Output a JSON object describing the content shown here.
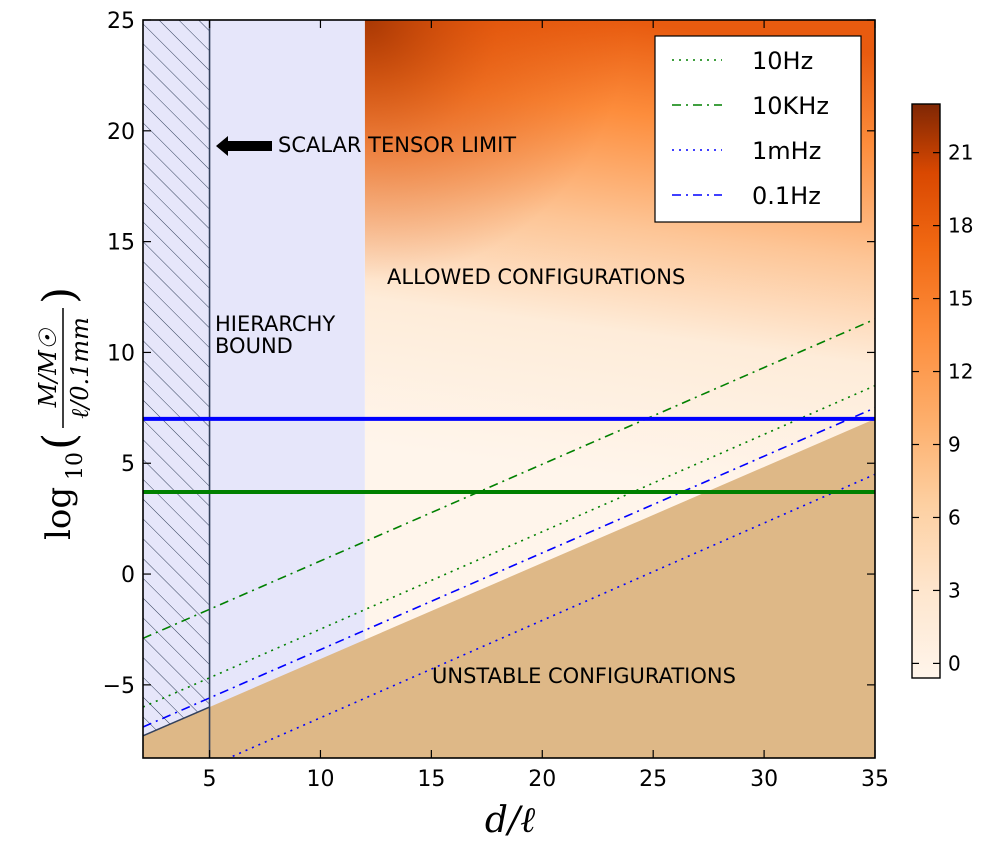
{
  "chart_data": {
    "type": "heatmap",
    "xlabel": "d/ℓ",
    "ylabel": {
      "prefix": "log",
      "subscript": "10",
      "numerator": "M/M☉",
      "denominator": "ℓ/0.1mm"
    },
    "xlim": [
      2,
      35
    ],
    "ylim": [
      -8.3,
      25
    ],
    "x_ticks": [
      5,
      10,
      15,
      20,
      25,
      30,
      35
    ],
    "y_ticks": [
      -5,
      0,
      5,
      10,
      15,
      20,
      25
    ],
    "y_tick_labels": [
      "−5",
      "0",
      "5",
      "10",
      "15",
      "20",
      "25"
    ],
    "colorbar": {
      "min": -0.6,
      "max": 23,
      "ticks": [
        0,
        3,
        6,
        9,
        12,
        15,
        18,
        21
      ],
      "colormap": "Oranges",
      "colors": [
        "#fff5eb",
        "#fdd0a2",
        "#fd8d3c",
        "#d94801",
        "#7f2704"
      ]
    },
    "regions": {
      "excluded_hatched": {
        "x": [
          2,
          5
        ],
        "color": "#e6e6fa"
      },
      "hierarchy_bound": {
        "x": [
          5,
          12
        ],
        "color": "#e6e6fa"
      },
      "unstable": {
        "boundary": [
          [
            2,
            -7.3
          ],
          [
            35,
            7.0
          ]
        ],
        "color": "#deb887"
      }
    },
    "horizontal_lines": [
      {
        "y": 7.0,
        "color": "#0000ff"
      },
      {
        "y": 3.7,
        "color": "#008000"
      }
    ],
    "series": [
      {
        "name": "10Hz",
        "style": "dotted",
        "color": "#008000",
        "points": [
          [
            2,
            -6.0
          ],
          [
            35,
            8.5
          ]
        ]
      },
      {
        "name": "10KHz",
        "style": "dashdot",
        "color": "#008000",
        "points": [
          [
            2,
            -2.9
          ],
          [
            35,
            11.5
          ]
        ]
      },
      {
        "name": "1mHz",
        "style": "dotted",
        "color": "#0000ff",
        "points": [
          [
            2,
            -10.0
          ],
          [
            35,
            4.5
          ]
        ]
      },
      {
        "name": "0.1Hz",
        "style": "dashdot",
        "color": "#0000ff",
        "points": [
          [
            2,
            -6.9
          ],
          [
            35,
            7.5
          ]
        ]
      }
    ],
    "annotations": {
      "scalar_tensor": "SCALAR TENSOR LIMIT",
      "allowed": "ALLOWED CONFIGURATIONS",
      "hierarchy_line1": "HIERARCHY",
      "hierarchy_line2": "BOUND",
      "unstable": "UNSTABLE CONFIGURATIONS"
    },
    "legend": {
      "placement": "top-right"
    }
  }
}
